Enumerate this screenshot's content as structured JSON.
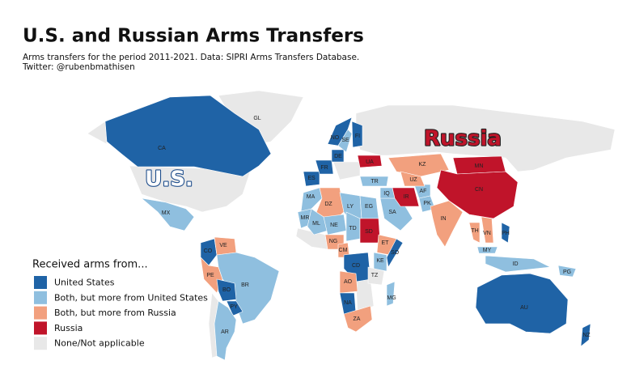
{
  "header": {
    "title": "U.S. and Russian Arms Transfers",
    "subtitle": [
      "Arms transfers for the period 2011-2021. Data: SIPRI Arms Transfers Database.",
      "Twitter: @rubenbmathisen"
    ]
  },
  "legend": {
    "title": "Received arms from...",
    "items": [
      {
        "label": "United States",
        "color": "#1f63a6"
      },
      {
        "label": "Both, but more from United States",
        "color": "#8fbfdf"
      },
      {
        "label": "Both, but more from Russia",
        "color": "#f2a07e"
      },
      {
        "label": "Russia",
        "color": "#c0142a"
      },
      {
        "label": "None/Not applicable",
        "color": "#e8e8e8"
      }
    ]
  },
  "big_labels": [
    "U.S.",
    "Russia"
  ],
  "countries": [
    {
      "label": "GL",
      "group": 4
    },
    {
      "label": "CA",
      "group": 0
    },
    {
      "label": "MX",
      "group": 1
    },
    {
      "label": "CO",
      "group": 0
    },
    {
      "label": "VE",
      "group": 2
    },
    {
      "label": "BR",
      "group": 1
    },
    {
      "label": "PE",
      "group": 2
    },
    {
      "label": "BO",
      "group": 0
    },
    {
      "label": "PY",
      "group": 0
    },
    {
      "label": "AR",
      "group": 1
    },
    {
      "label": "MA",
      "group": 1
    },
    {
      "label": "DZ",
      "group": 2
    },
    {
      "label": "LY",
      "group": 1
    },
    {
      "label": "EG",
      "group": 1
    },
    {
      "label": "MR",
      "group": 1
    },
    {
      "label": "ML",
      "group": 1
    },
    {
      "label": "NE",
      "group": 1
    },
    {
      "label": "TD",
      "group": 1
    },
    {
      "label": "SD",
      "group": 3
    },
    {
      "label": "ET",
      "group": 2
    },
    {
      "label": "SO",
      "group": 0
    },
    {
      "label": "NG",
      "group": 2
    },
    {
      "label": "CM",
      "group": 2
    },
    {
      "label": "CD",
      "group": 0
    },
    {
      "label": "KE",
      "group": 1
    },
    {
      "label": "TZ",
      "group": 4
    },
    {
      "label": "AO",
      "group": 2
    },
    {
      "label": "NA",
      "group": 0
    },
    {
      "label": "ZA",
      "group": 2
    },
    {
      "label": "MG",
      "group": 1
    },
    {
      "label": "ES",
      "group": 0
    },
    {
      "label": "FR",
      "group": 0
    },
    {
      "label": "DE",
      "group": 0
    },
    {
      "label": "NO",
      "group": 0
    },
    {
      "label": "SE",
      "group": 1
    },
    {
      "label": "FI",
      "group": 0
    },
    {
      "label": "UA",
      "group": 3
    },
    {
      "label": "TR",
      "group": 1
    },
    {
      "label": "SA",
      "group": 1
    },
    {
      "label": "IQ",
      "group": 1
    },
    {
      "label": "IR",
      "group": 3
    },
    {
      "label": "AF",
      "group": 1
    },
    {
      "label": "PK",
      "group": 1
    },
    {
      "label": "KZ",
      "group": 2
    },
    {
      "label": "UZ",
      "group": 2
    },
    {
      "label": "MN",
      "group": 3
    },
    {
      "label": "CN",
      "group": 3
    },
    {
      "label": "IN",
      "group": 2
    },
    {
      "label": "TH",
      "group": 2
    },
    {
      "label": "VN",
      "group": 2
    },
    {
      "label": "PH",
      "group": 0
    },
    {
      "label": "MY",
      "group": 1
    },
    {
      "label": "ID",
      "group": 1
    },
    {
      "label": "PG",
      "group": 1
    },
    {
      "label": "AU",
      "group": 0
    },
    {
      "label": "NZ",
      "group": 0
    }
  ]
}
